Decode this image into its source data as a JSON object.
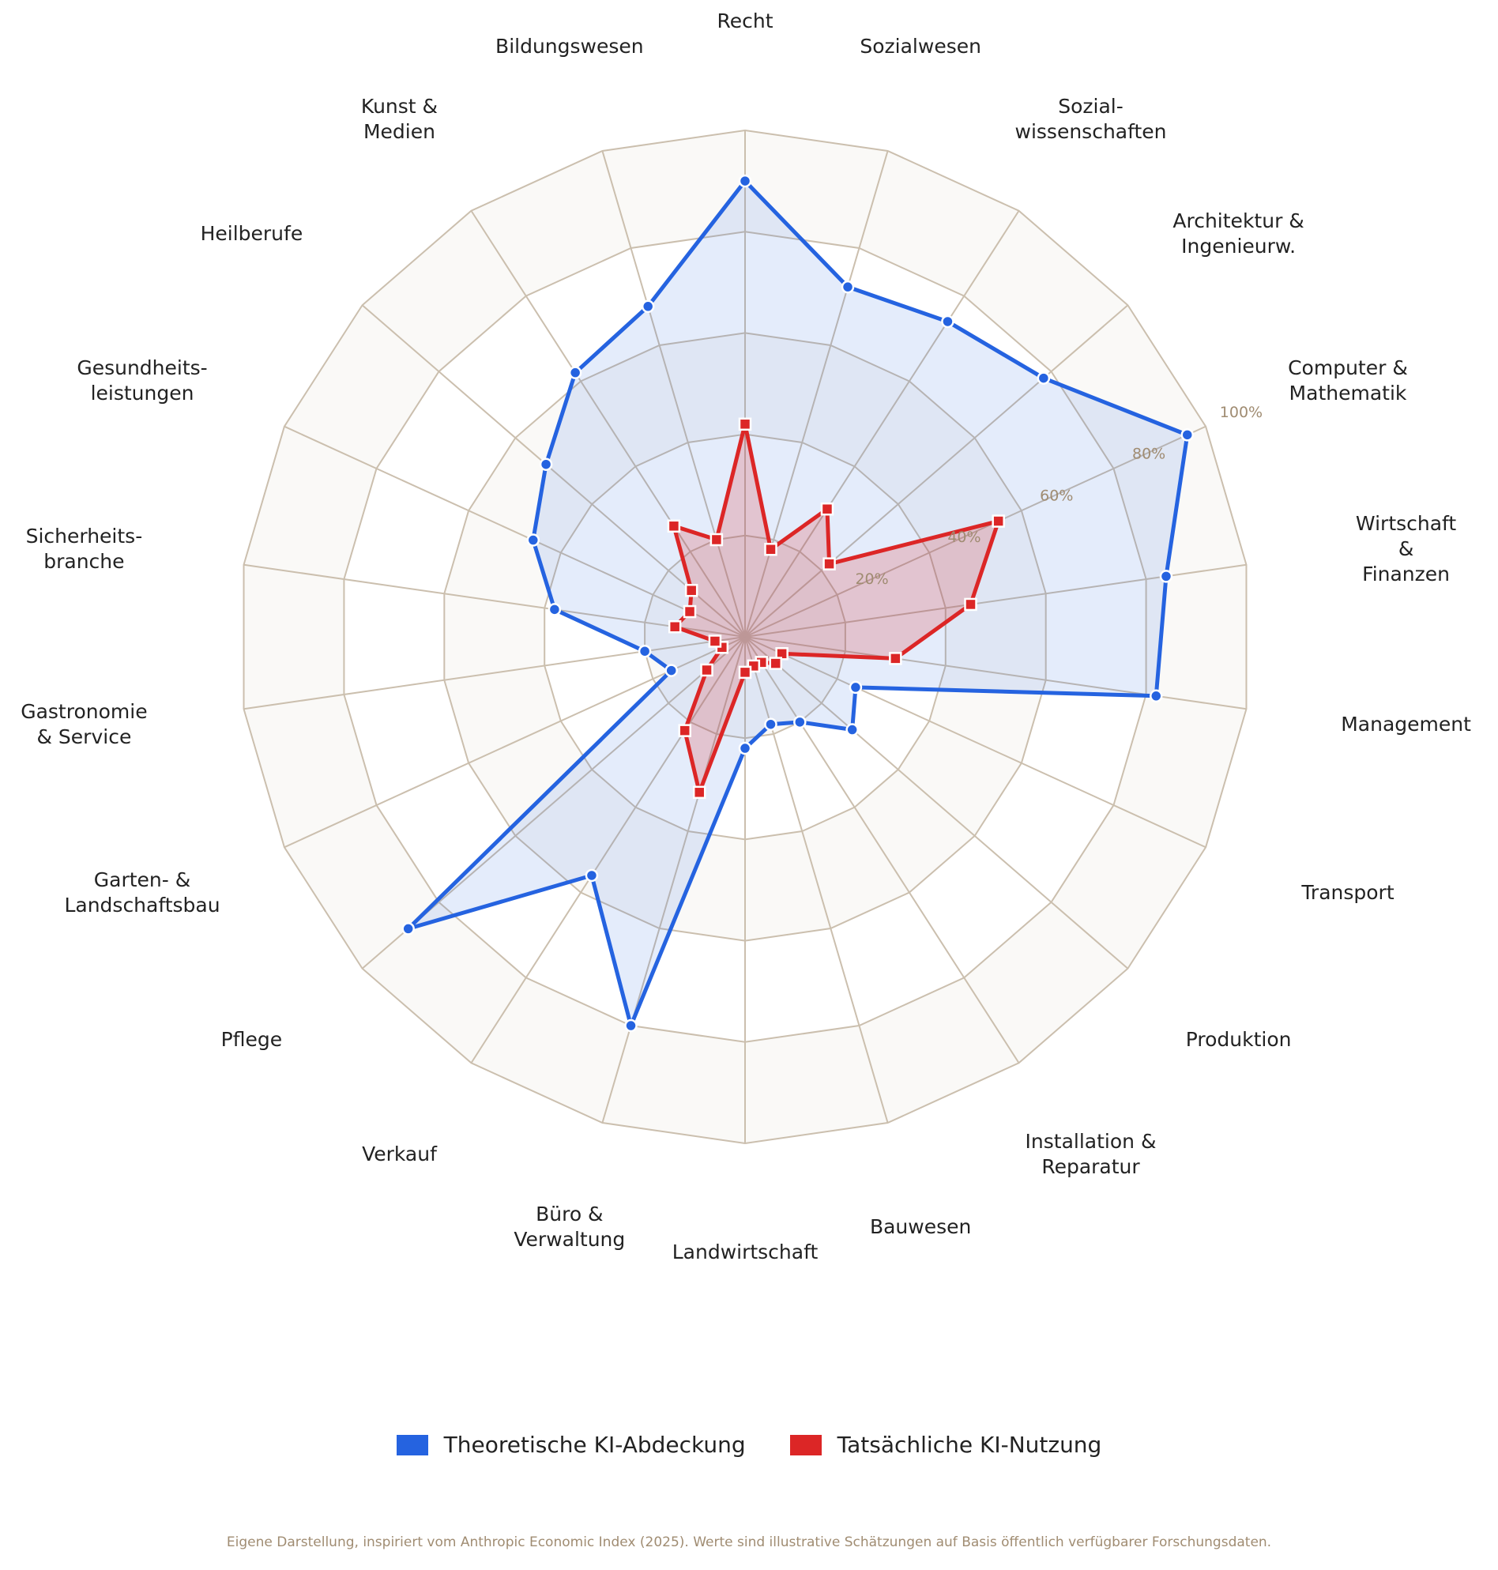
{
  "chart_data": {
    "type": "radar",
    "categories": [
      "Recht",
      "Sozialwesen",
      "Sozial-\nwissenschaften",
      "Architektur &\nIngenieurw.",
      "Computer &\nMathematik",
      "Wirtschaft &\nFinanzen",
      "Management",
      "Transport",
      "Produktion",
      "Installation &\nReparatur",
      "Bauwesen",
      "Landwirtschaft",
      "Büro &\nVerwaltung",
      "Verkauf",
      "Pflege",
      "Garten- &\nLandschaftsbau",
      "Gastronomie\n& Service",
      "Sicherheits-\nbranche",
      "Gesundheits-\nleistungen",
      "Heilberufe",
      "Kunst &\nMedien",
      "Bildungswesen"
    ],
    "series": [
      {
        "name": "Theoretische KI-Abdeckung",
        "color": "#2563e0",
        "values": [
          90,
          72,
          74,
          78,
          96,
          84,
          82,
          24,
          28,
          20,
          18,
          22,
          80,
          56,
          88,
          16,
          20,
          38,
          46,
          52,
          62,
          68
        ]
      },
      {
        "name": "Tatsächliche KI-Nutzung",
        "color": "#dc2626",
        "values": [
          42,
          18,
          30,
          22,
          55,
          45,
          30,
          8,
          8,
          6,
          6,
          7,
          32,
          22,
          10,
          5,
          6,
          14,
          12,
          14,
          26,
          20
        ]
      }
    ],
    "rlim": [
      0,
      100
    ],
    "rticks": [
      {
        "value": 20,
        "label": "20%"
      },
      {
        "value": 40,
        "label": "40%"
      },
      {
        "value": 60,
        "label": "60%"
      },
      {
        "value": 80,
        "label": "80%"
      },
      {
        "value": 100,
        "label": "100%"
      }
    ],
    "grid": true,
    "footnote": "Eigene Darstellung, inspiriert vom Anthropic Economic Index (2025). Werte sind illustrative Schätzungen auf Basis öffentlich verfügbarer Forschungsdaten."
  }
}
